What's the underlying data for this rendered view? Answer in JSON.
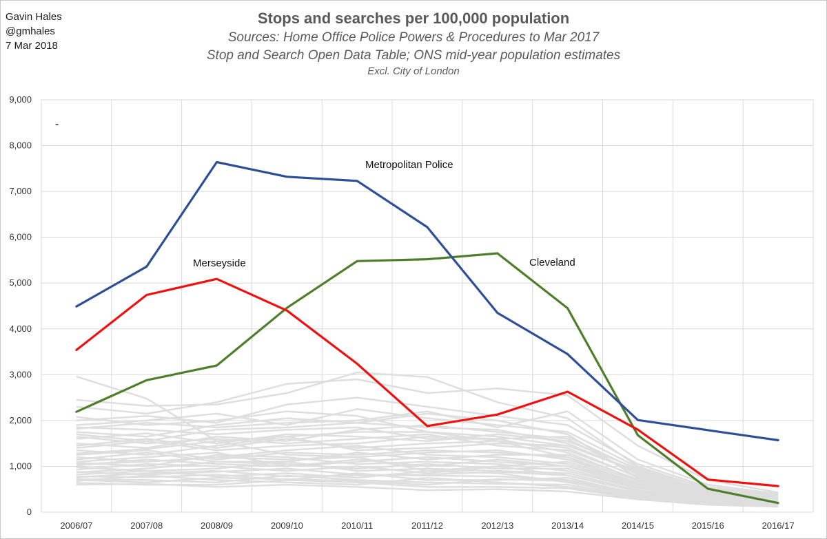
{
  "author": {
    "name": "Gavin Hales",
    "handle": "@gmhales",
    "date": "7 Mar 2018"
  },
  "chart_data": {
    "type": "line",
    "title": "Stops and searches per 100,000 population",
    "subtitle_lines": [
      "Sources: Home Office Police Powers & Procedures to Mar 2017",
      "Stop and Search Open Data Table; ONS mid-year population estimates"
    ],
    "note": "Excl. City of London",
    "marker_text": "-",
    "categories": [
      "2006/07",
      "2007/08",
      "2008/09",
      "2009/10",
      "2010/11",
      "2011/12",
      "2012/13",
      "2013/14",
      "2014/15",
      "2015/16",
      "2016/17"
    ],
    "ylim": [
      0,
      9000
    ],
    "yticks": [
      0,
      1000,
      2000,
      3000,
      4000,
      5000,
      6000,
      7000,
      8000,
      9000
    ],
    "ytick_labels": [
      "0",
      "1,000",
      "2,000",
      "3,000",
      "4,000",
      "5,000",
      "6,000",
      "7,000",
      "8,000",
      "9,000"
    ],
    "grid": true,
    "colors": {
      "metropolitan": "#2E4F96",
      "merseyside": "#F01010",
      "cleveland": "#4E7E2A",
      "other": "#DEDEDE",
      "grid": "#D9D9D9"
    },
    "series": [
      {
        "name": "Metropolitan Police",
        "key": "metropolitan",
        "label": "Metropolitan Police",
        "values": [
          4490,
          5360,
          7640,
          7320,
          7230,
          6220,
          4350,
          3450,
          2010,
          1790,
          1570
        ]
      },
      {
        "name": "Merseyside",
        "key": "merseyside",
        "label": "Merseyside",
        "values": [
          3540,
          4740,
          5090,
          4400,
          3240,
          1880,
          2130,
          2630,
          1800,
          710,
          570
        ]
      },
      {
        "name": "Cleveland",
        "key": "cleveland",
        "label": "Cleveland",
        "values": [
          2190,
          2880,
          3200,
          4460,
          5480,
          5520,
          5650,
          4450,
          1680,
          510,
          200
        ]
      }
    ],
    "other_forces": [
      [
        2960,
        2480,
        1550,
        1650,
        1750,
        1750,
        1550,
        1200,
        580,
        320,
        240
      ],
      [
        2450,
        2320,
        2350,
        2600,
        3050,
        2950,
        2400,
        2050,
        1000,
        500,
        350
      ],
      [
        2300,
        2150,
        2400,
        2800,
        2900,
        2600,
        2700,
        2550,
        1450,
        700,
        430
      ],
      [
        2080,
        1900,
        2000,
        2200,
        2100,
        1750,
        1650,
        1450,
        900,
        480,
        330
      ],
      [
        1820,
        1950,
        1850,
        1950,
        2000,
        2200,
        1850,
        2200,
        1150,
        600,
        400
      ],
      [
        1700,
        1550,
        1800,
        1850,
        1950,
        2150,
        2000,
        1700,
        750,
        430,
        290
      ],
      [
        1600,
        1720,
        1500,
        1700,
        1650,
        1550,
        1700,
        1550,
        950,
        520,
        360
      ],
      [
        1500,
        1400,
        1650,
        1550,
        1800,
        1900,
        1750,
        1600,
        820,
        410,
        300
      ],
      [
        1400,
        1550,
        1350,
        1450,
        1500,
        1650,
        1600,
        1300,
        700,
        380,
        260
      ],
      [
        1350,
        1250,
        1450,
        1650,
        1350,
        1400,
        1500,
        1450,
        880,
        450,
        320
      ],
      [
        1280,
        1380,
        1550,
        1250,
        1200,
        1300,
        1350,
        1150,
        640,
        350,
        250
      ],
      [
        1200,
        1100,
        1200,
        1350,
        1450,
        1250,
        1200,
        1050,
        600,
        330,
        230
      ],
      [
        1150,
        1300,
        1100,
        1100,
        1300,
        1150,
        1250,
        1250,
        720,
        400,
        280
      ],
      [
        1080,
        1000,
        1250,
        1200,
        1050,
        1100,
        1050,
        900,
        520,
        300,
        210
      ],
      [
        1020,
        1150,
        1050,
        1000,
        1150,
        1000,
        1150,
        1000,
        600,
        350,
        240
      ],
      [
        980,
        900,
        950,
        1100,
        900,
        950,
        900,
        850,
        480,
        270,
        190
      ],
      [
        930,
        1050,
        1000,
        900,
        1000,
        850,
        1000,
        800,
        450,
        260,
        200
      ],
      [
        880,
        820,
        880,
        950,
        820,
        800,
        780,
        700,
        420,
        240,
        170
      ],
      [
        820,
        900,
        780,
        850,
        750,
        900,
        850,
        650,
        380,
        220,
        160
      ],
      [
        780,
        760,
        820,
        700,
        850,
        700,
        700,
        750,
        400,
        230,
        170
      ],
      [
        720,
        700,
        650,
        800,
        700,
        650,
        620,
        600,
        350,
        200,
        140
      ],
      [
        680,
        800,
        700,
        650,
        600,
        750,
        650,
        550,
        330,
        190,
        150
      ],
      [
        640,
        600,
        600,
        700,
        650,
        550,
        550,
        520,
        300,
        180,
        130
      ],
      [
        600,
        620,
        550,
        600,
        550,
        480,
        500,
        450,
        280,
        160,
        120
      ],
      [
        1750,
        1650,
        1900,
        2050,
        1950,
        1850,
        1800,
        1500,
        850,
        440,
        310
      ],
      [
        1900,
        2000,
        2150,
        1900,
        2250,
        2050,
        1900,
        1750,
        980,
        520,
        370
      ],
      [
        1650,
        1500,
        1600,
        1500,
        1600,
        1700,
        1450,
        1350,
        780,
        420,
        300
      ],
      [
        1450,
        1600,
        1400,
        1600,
        1400,
        1500,
        1550,
        1400,
        760,
        400,
        290
      ],
      [
        1100,
        1200,
        1300,
        1000,
        1100,
        1200,
        1100,
        1000,
        560,
        310,
        220
      ],
      [
        870,
        950,
        1100,
        1050,
        950,
        1050,
        950,
        950,
        540,
        300,
        210
      ],
      [
        760,
        850,
        900,
        780,
        800,
        820,
        880,
        800,
        460,
        260,
        180
      ],
      [
        700,
        650,
        750,
        720,
        680,
        600,
        720,
        680,
        380,
        210,
        150
      ],
      [
        2000,
        2100,
        1950,
        2350,
        2500,
        2300,
        2100,
        1900,
        1050,
        550,
        380
      ],
      [
        1850,
        1800,
        1700,
        1800,
        1850,
        1600,
        1600,
        1650,
        920,
        470,
        330
      ],
      [
        1250,
        1350,
        1150,
        1300,
        1250,
        1350,
        1300,
        1200,
        680,
        370,
        270
      ],
      [
        1050,
        1100,
        1200,
        1150,
        1200,
        900,
        1000,
        1100,
        620,
        340,
        240
      ]
    ]
  }
}
